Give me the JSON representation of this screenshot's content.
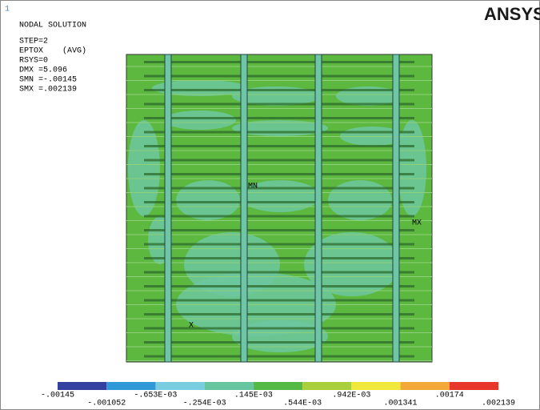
{
  "header": {
    "window_number": "1",
    "title": "NODAL SOLUTION",
    "logo": "ANSYS"
  },
  "info": [
    "STEP=2",
    "EPTOX    (AVG)",
    "RSYS=0",
    "DMX =5.096",
    "SMN =-.00145",
    "SMX =.002139"
  ],
  "markers": {
    "min": "MN",
    "max": "MX",
    "axis": "X"
  },
  "legend": {
    "colors": [
      "#34409f",
      "#2f98d6",
      "#79cde0",
      "#67c6a0",
      "#55b945",
      "#a9d03c",
      "#f1e83c",
      "#f2a937",
      "#e7372b"
    ],
    "labels": [
      "-.00145",
      "-.001052",
      "-.653E-03",
      "-.254E-03",
      ".145E-03",
      ".544E-03",
      ".942E-03",
      ".001341",
      ".00174",
      ".002139"
    ]
  }
}
